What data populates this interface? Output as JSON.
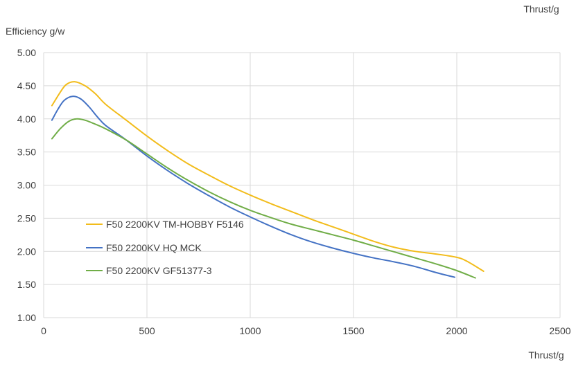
{
  "chart_data": {
    "type": "line",
    "title": "",
    "top_label": "Thrust/g",
    "xlabel": "Thrust/g",
    "ylabel": "Efficiency g/w",
    "xlim": [
      0,
      2500
    ],
    "ylim": [
      1.0,
      5.0
    ],
    "xticks": [
      0,
      500,
      1000,
      1500,
      2000,
      2500
    ],
    "yticks": [
      1.0,
      1.5,
      2.0,
      2.5,
      3.0,
      3.5,
      4.0,
      4.5,
      5.0
    ],
    "xtick_labels": [
      "0",
      "500",
      "1000",
      "1500",
      "2000",
      "2500"
    ],
    "ytick_labels": [
      "1.00",
      "1.50",
      "2.00",
      "2.50",
      "3.00",
      "3.50",
      "4.00",
      "4.50",
      "5.00"
    ],
    "grid": true,
    "legend_position": "lower-left",
    "series": [
      {
        "name": "F50 2200KV TM-HOBBY F5146",
        "color": "#F2BC1B",
        "x": [
          40,
          80,
          110,
          150,
          200,
          250,
          300,
          400,
          500,
          600,
          700,
          800,
          900,
          1000,
          1100,
          1200,
          1300,
          1400,
          1500,
          1600,
          1700,
          1800,
          1900,
          2000,
          2050,
          2130
        ],
        "y": [
          4.2,
          4.4,
          4.52,
          4.56,
          4.5,
          4.38,
          4.22,
          3.98,
          3.74,
          3.52,
          3.32,
          3.15,
          2.99,
          2.85,
          2.72,
          2.6,
          2.48,
          2.37,
          2.26,
          2.15,
          2.06,
          2.0,
          1.96,
          1.91,
          1.85,
          1.7
        ]
      },
      {
        "name": "F50 2200KV HQ MCK",
        "color": "#4472C4",
        "x": [
          40,
          70,
          100,
          140,
          180,
          220,
          260,
          300,
          400,
          500,
          600,
          700,
          800,
          900,
          1000,
          1100,
          1200,
          1300,
          1400,
          1500,
          1600,
          1700,
          1800,
          1900,
          1990
        ],
        "y": [
          3.98,
          4.15,
          4.28,
          4.34,
          4.3,
          4.18,
          4.03,
          3.9,
          3.68,
          3.44,
          3.22,
          3.02,
          2.84,
          2.67,
          2.52,
          2.38,
          2.25,
          2.14,
          2.05,
          1.97,
          1.9,
          1.84,
          1.77,
          1.68,
          1.61
        ]
      },
      {
        "name": "F50 2200KV GF51377-3",
        "color": "#70AD47",
        "x": [
          40,
          80,
          120,
          160,
          200,
          250,
          300,
          400,
          500,
          600,
          700,
          800,
          900,
          1000,
          1100,
          1200,
          1300,
          1400,
          1500,
          1600,
          1700,
          1800,
          1900,
          2000,
          2090
        ],
        "y": [
          3.7,
          3.85,
          3.96,
          4.0,
          3.98,
          3.92,
          3.85,
          3.68,
          3.47,
          3.26,
          3.07,
          2.9,
          2.75,
          2.62,
          2.51,
          2.41,
          2.33,
          2.25,
          2.17,
          2.08,
          1.99,
          1.9,
          1.81,
          1.71,
          1.6
        ]
      }
    ]
  }
}
